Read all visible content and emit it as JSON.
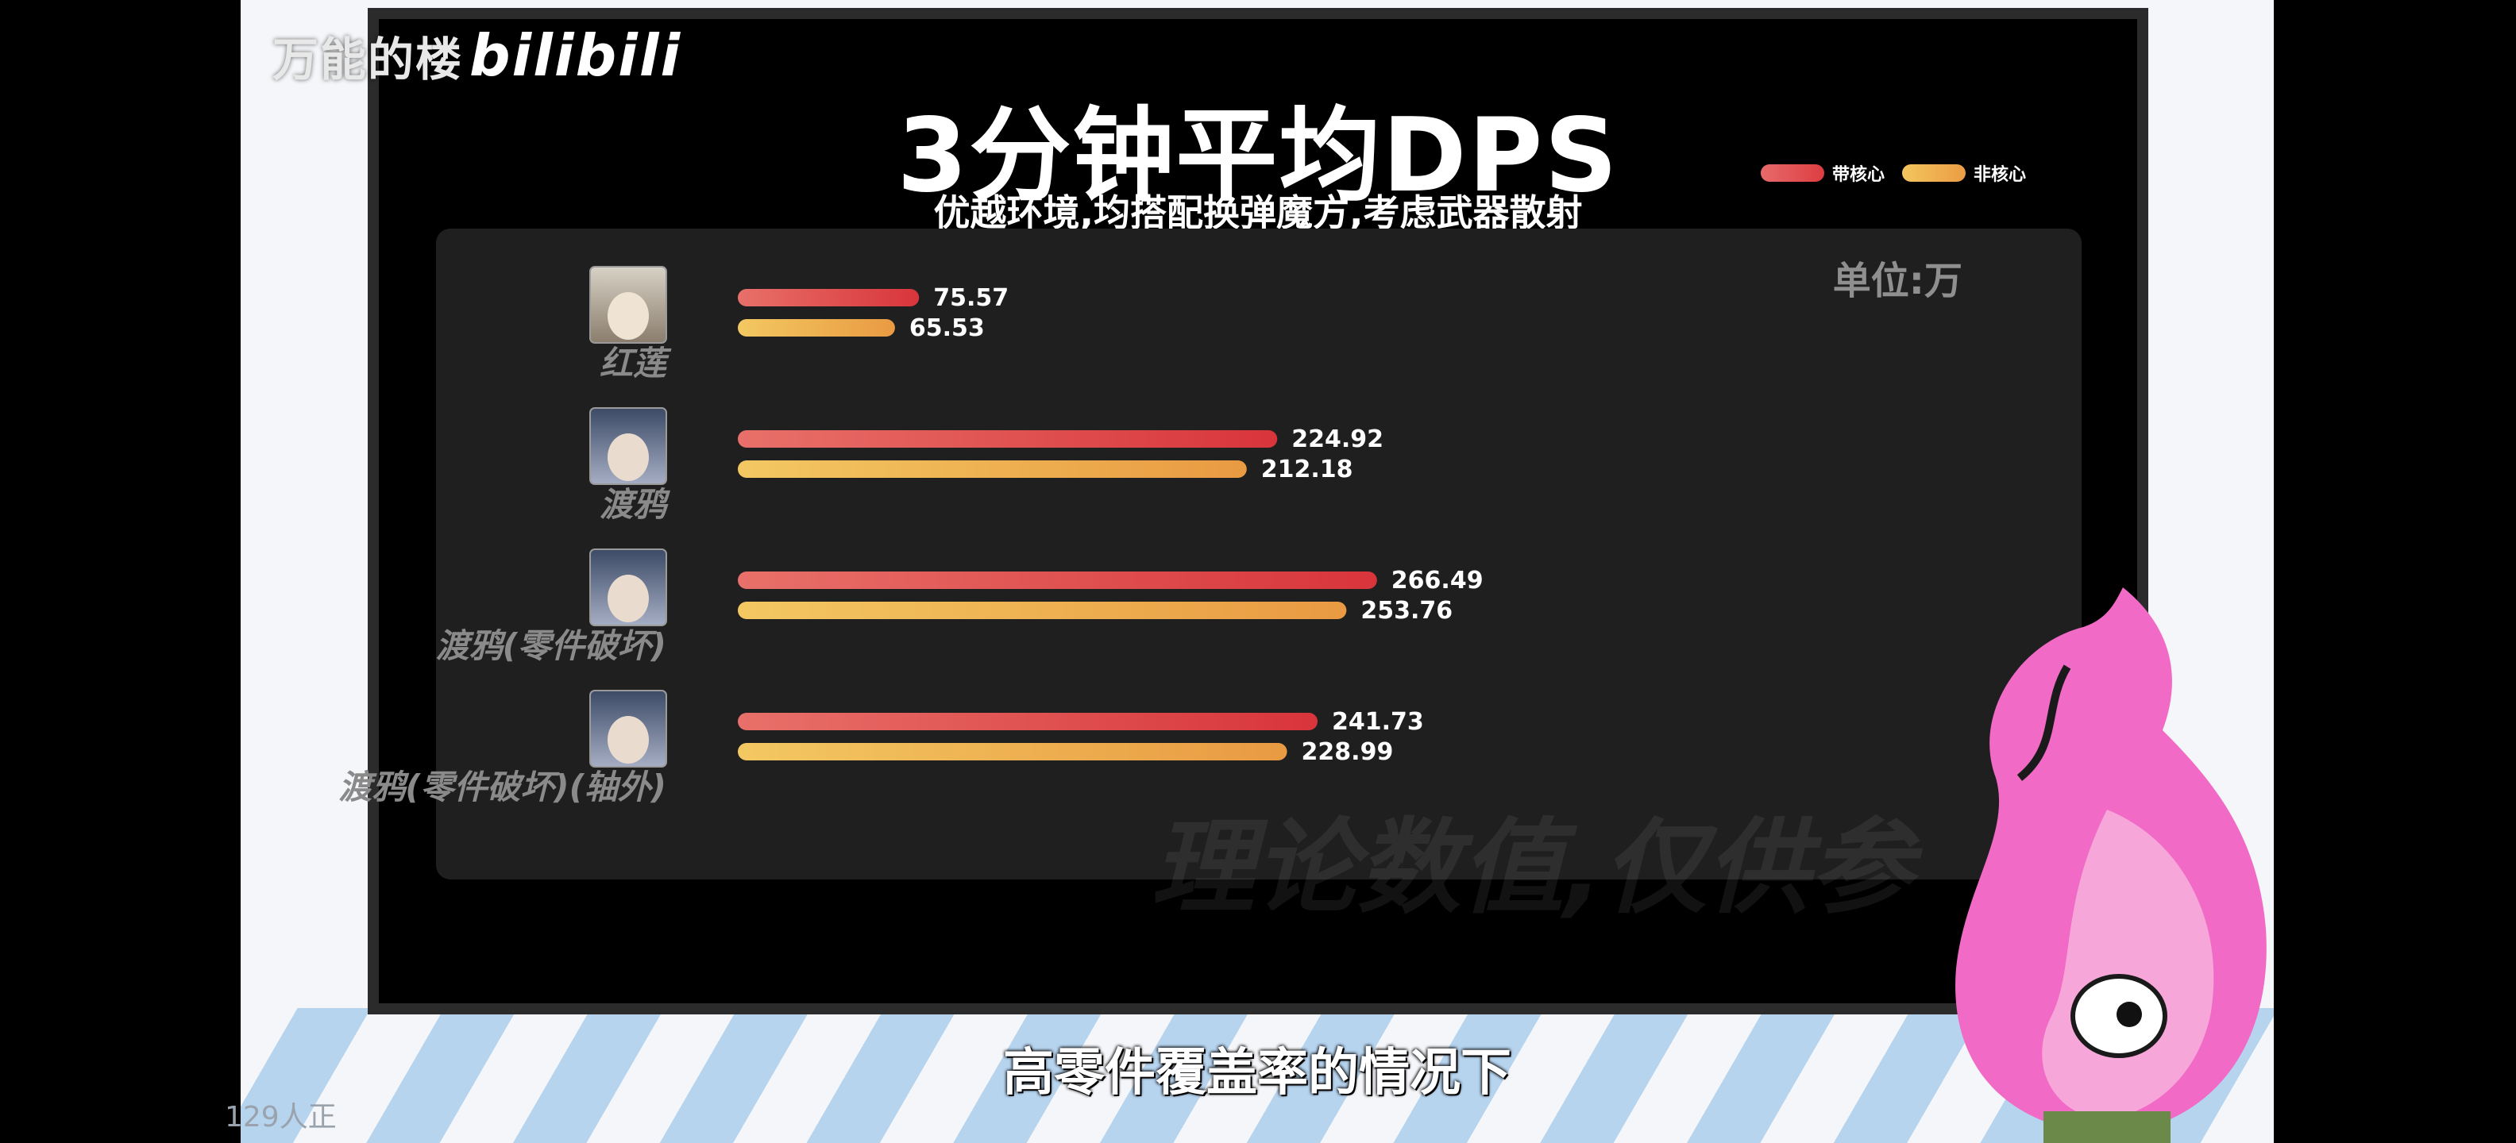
{
  "watermark": {
    "channel": "万能的楼",
    "logo": "bilibili"
  },
  "title": "3分钟平均DPS",
  "subtitle": "优越环境,均搭配换弹魔方,考虑武器散射",
  "unit_label": "单位:万",
  "faint_watermark": "理论数值,仅供参",
  "caption": "高零件覆盖率的情况下",
  "viewer_count": "129人正",
  "colors": {
    "core": "#e0474f",
    "noncore": "#eea54a",
    "panel": "#1f1f1f"
  },
  "chart_data": {
    "type": "bar",
    "orientation": "horizontal",
    "categories": [
      "红莲",
      "渡鸦",
      "渡鸦(零件破坏)",
      "渡鸦(零件破坏)(轴外)"
    ],
    "series": [
      {
        "name": "带核心",
        "values": [
          75.57,
          224.92,
          266.49,
          241.73
        ]
      },
      {
        "name": "非核心",
        "values": [
          65.53,
          212.18,
          253.76,
          228.99
        ]
      }
    ],
    "legend_position": "top-right",
    "value_labels": {
      "core": [
        "75.57",
        "224.92",
        "266.49",
        "241.73"
      ],
      "noncore": [
        "65.53",
        "212.18",
        "253.76",
        "228.99"
      ]
    }
  }
}
